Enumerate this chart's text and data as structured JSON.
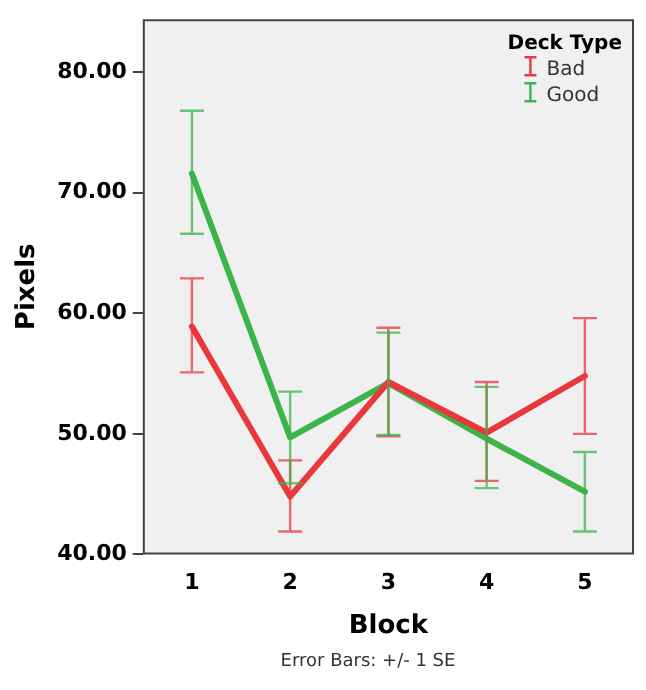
{
  "chart_data": {
    "type": "line",
    "xlabel": "Block",
    "ylabel": "Pixels",
    "legend_title": "Deck Type",
    "legend": "top right",
    "grid": false,
    "marker": "none",
    "line_style": "solid",
    "categories": [
      "1",
      "2",
      "3",
      "4",
      "5"
    ],
    "ylim": [
      40,
      84.4
    ],
    "yticks": [
      {
        "value": 40,
        "label": "40.00"
      },
      {
        "value": 50,
        "label": "50.00"
      },
      {
        "value": 60,
        "label": "60.00"
      },
      {
        "value": 70,
        "label": "70.00"
      },
      {
        "value": 80,
        "label": "80.00"
      }
    ],
    "series": [
      {
        "name": "Bad",
        "color": "#e8383d",
        "values": [
          58.9,
          44.8,
          54.3,
          50.1,
          54.8
        ],
        "errors": [
          [
            55.1,
            62.9
          ],
          [
            41.9,
            47.8
          ],
          [
            49.8,
            58.8
          ],
          [
            46.1,
            54.3
          ],
          [
            50.0,
            59.6
          ]
        ]
      },
      {
        "name": "Good",
        "color": "#3cb44a",
        "values": [
          71.6,
          49.7,
          54.2,
          49.6,
          45.2
        ],
        "errors": [
          [
            66.6,
            76.8
          ],
          [
            45.9,
            53.5
          ],
          [
            49.9,
            58.4
          ],
          [
            45.5,
            53.9
          ],
          [
            41.9,
            48.5
          ]
        ]
      }
    ],
    "annotations": [
      "Error Bars: +/- 1 SE"
    ]
  }
}
